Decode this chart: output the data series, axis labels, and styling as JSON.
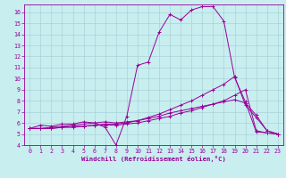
{
  "xlabel": "Windchill (Refroidissement éolien,°C)",
  "background_color": "#c8eef0",
  "grid_color": "#aad4d8",
  "line_color": "#990099",
  "xlim": [
    -0.5,
    23.5
  ],
  "ylim": [
    4,
    16.7
  ],
  "xticks": [
    0,
    1,
    2,
    3,
    4,
    5,
    6,
    7,
    8,
    9,
    10,
    11,
    12,
    13,
    14,
    15,
    16,
    17,
    18,
    19,
    20,
    21,
    22,
    23
  ],
  "yticks": [
    4,
    5,
    6,
    7,
    8,
    9,
    10,
    11,
    12,
    13,
    14,
    15,
    16
  ],
  "series": [
    [
      5.5,
      5.8,
      5.7,
      5.9,
      5.9,
      6.1,
      6.0,
      5.6,
      4.0,
      6.6,
      11.2,
      11.5,
      14.2,
      15.8,
      15.3,
      16.2,
      16.5,
      16.5,
      15.2,
      10.1,
      7.9,
      5.2,
      5.1,
      5.0
    ],
    [
      5.5,
      5.5,
      5.5,
      5.6,
      5.6,
      5.7,
      5.8,
      5.8,
      5.8,
      5.9,
      6.0,
      6.2,
      6.4,
      6.6,
      6.9,
      7.1,
      7.4,
      7.7,
      8.0,
      8.5,
      9.0,
      5.3,
      5.1,
      5.0
    ],
    [
      5.5,
      5.5,
      5.5,
      5.6,
      5.7,
      5.7,
      5.8,
      5.9,
      5.9,
      6.0,
      6.2,
      6.5,
      6.8,
      7.2,
      7.6,
      8.0,
      8.5,
      9.0,
      9.5,
      10.2,
      7.6,
      6.5,
      5.3,
      5.0
    ],
    [
      5.5,
      5.5,
      5.6,
      5.7,
      5.8,
      5.9,
      6.0,
      6.1,
      6.0,
      6.1,
      6.2,
      6.4,
      6.6,
      6.9,
      7.1,
      7.3,
      7.5,
      7.7,
      7.9,
      8.1,
      7.8,
      6.7,
      5.3,
      5.0
    ]
  ]
}
